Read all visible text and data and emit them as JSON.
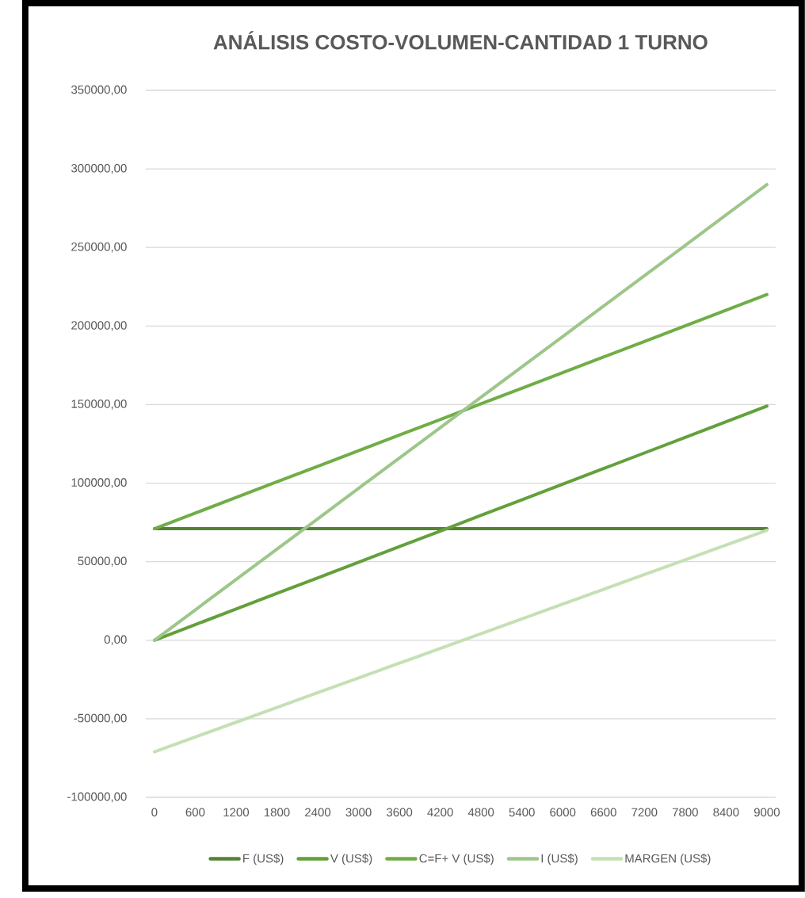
{
  "chart_data": {
    "type": "line",
    "title": "ANÁLISIS COSTO-VOLUMEN-CANTIDAD 1 TURNO",
    "categories": [
      "0",
      "600",
      "1200",
      "1800",
      "2400",
      "3000",
      "3600",
      "4200",
      "4800",
      "5400",
      "6000",
      "6600",
      "7200",
      "7800",
      "8400",
      "9000"
    ],
    "series": [
      {
        "name": "F (US$)",
        "color": "#548235",
        "values": [
          71000,
          71000,
          71000,
          71000,
          71000,
          71000,
          71000,
          71000,
          71000,
          71000,
          71000,
          71000,
          71000,
          71000,
          71000,
          71000
        ]
      },
      {
        "name": "V (US$)",
        "color": "#63a03c",
        "values": [
          0,
          9900,
          19900,
          29800,
          39700,
          49700,
          59600,
          69500,
          79500,
          89400,
          99300,
          109300,
          119200,
          129100,
          139100,
          149000
        ]
      },
      {
        "name": "C=F+ V (US$)",
        "color": "#70ad47",
        "values": [
          71000,
          80900,
          90900,
          100800,
          110700,
          120700,
          130600,
          140500,
          150500,
          160400,
          170300,
          180300,
          190200,
          200100,
          210100,
          220000
        ]
      },
      {
        "name": "I (US$)",
        "color": "#9dc78a",
        "values": [
          0,
          19300,
          38700,
          58000,
          77300,
          96700,
          116000,
          135300,
          154700,
          174000,
          193300,
          212700,
          232000,
          251300,
          270700,
          290000
        ]
      },
      {
        "name": "MARGEN (US$)",
        "color": "#c5e0b4",
        "values": [
          -71000,
          -61600,
          -52200,
          -42800,
          -33400,
          -24000,
          -14600,
          -5200,
          4200,
          13600,
          23000,
          32400,
          41800,
          51200,
          60600,
          70000
        ]
      }
    ],
    "ylim": [
      -100000,
      350000
    ],
    "yticks": [
      {
        "value": -100000,
        "label": "-100000,00"
      },
      {
        "value": -50000,
        "label": "-50000,00"
      },
      {
        "value": 0,
        "label": "0,00"
      },
      {
        "value": 50000,
        "label": "50000,00"
      },
      {
        "value": 100000,
        "label": "100000,00"
      },
      {
        "value": 150000,
        "label": "150000,00"
      },
      {
        "value": 200000,
        "label": "200000,00"
      },
      {
        "value": 250000,
        "label": "250000,00"
      },
      {
        "value": 300000,
        "label": "300000,00"
      },
      {
        "value": 350000,
        "label": "350000,00"
      }
    ],
    "grid": "y",
    "legend": "bottom",
    "marker": "none",
    "line_style": "solid"
  }
}
